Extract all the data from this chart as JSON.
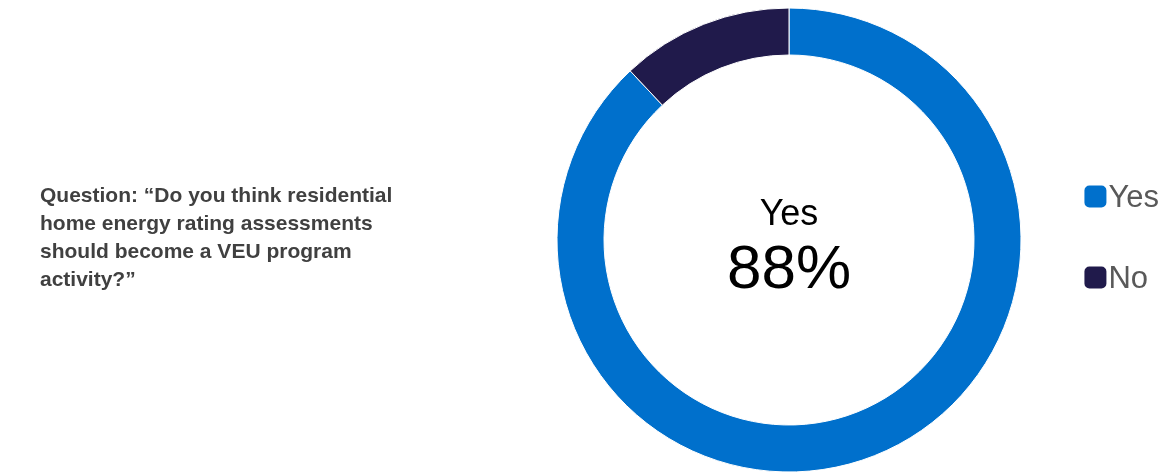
{
  "chart_data": {
    "type": "donut",
    "categories": [
      "Yes",
      "No"
    ],
    "values": [
      88,
      12
    ],
    "colors": [
      "#0070cc",
      "#201a4b"
    ],
    "value_labels": [
      "88%",
      null
    ],
    "legend": "right",
    "annotations": [
      "Question: “Do you think residential home energy rating assessments should become a VEU program activity?”"
    ]
  }
}
